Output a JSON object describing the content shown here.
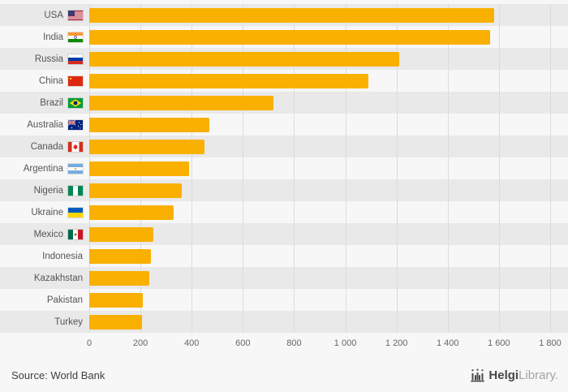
{
  "chart_data": {
    "type": "bar",
    "orientation": "horizontal",
    "title": "",
    "categories": [
      "USA",
      "India",
      "Russia",
      "China",
      "Brazil",
      "Australia",
      "Canada",
      "Argentina",
      "Nigeria",
      "Ukraine",
      "Mexico",
      "Indonesia",
      "Kazakhstan",
      "Pakistan",
      "Turkey"
    ],
    "values": [
      1580,
      1565,
      1210,
      1090,
      720,
      470,
      450,
      390,
      360,
      330,
      250,
      240,
      235,
      210,
      205
    ],
    "flags": [
      "us",
      "in",
      "ru",
      "cn",
      "br",
      "au",
      "ca",
      "ar",
      "ng",
      "ua",
      "mx",
      null,
      null,
      null,
      null
    ],
    "xlim": [
      0,
      1800
    ],
    "xticks": [
      0,
      200,
      400,
      600,
      800,
      1000,
      1200,
      1400,
      1600,
      1800
    ],
    "xtick_labels": [
      "0",
      "200",
      "400",
      "600",
      "800",
      "1 000",
      "1 200",
      "1 400",
      "1 600",
      "1 800"
    ],
    "grid": true,
    "legend_position": "none",
    "bar_color": "#f9b000"
  },
  "footer": {
    "source": "Source: World Bank",
    "logo": {
      "brand_primary": "Helgi",
      "brand_secondary": "Library."
    }
  },
  "colors": {
    "background": "#f7f7f7",
    "stripe": "#e9e9e9",
    "grid": "#dcdcdc",
    "bar": "#f9b000"
  }
}
